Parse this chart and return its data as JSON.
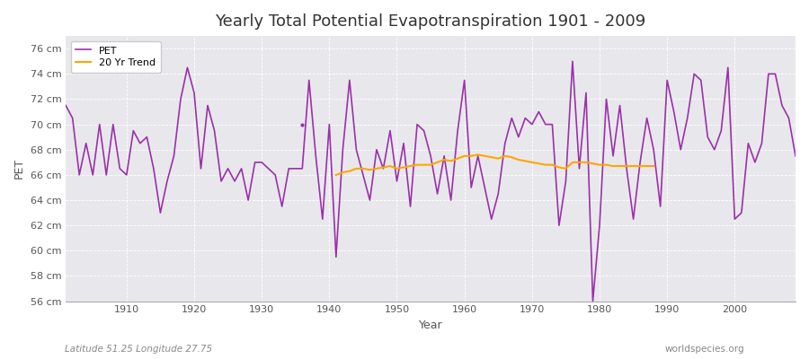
{
  "title": "Yearly Total Potential Evapotranspiration 1901 - 2009",
  "xlabel": "Year",
  "ylabel": "PET",
  "subtitle_left": "Latitude 51.25 Longitude 27.75",
  "subtitle_right": "worldspecies.org",
  "ylim": [
    56,
    77
  ],
  "ytick_labels": [
    "56 cm",
    "58 cm",
    "60 cm",
    "62 cm",
    "64 cm",
    "66 cm",
    "68 cm",
    "70 cm",
    "72 cm",
    "74 cm",
    "76 cm"
  ],
  "ytick_values": [
    56,
    58,
    60,
    62,
    64,
    66,
    68,
    70,
    72,
    74,
    76
  ],
  "pet_color": "#9B30AA",
  "trend_color": "#FFA500",
  "bg_color": "#FFFFFF",
  "plot_bg_color": "#E8E8EC",
  "grid_color": "#FFFFFF",
  "years": [
    1901,
    1902,
    1903,
    1904,
    1905,
    1906,
    1907,
    1908,
    1909,
    1910,
    1911,
    1912,
    1913,
    1914,
    1915,
    1916,
    1917,
    1918,
    1919,
    1920,
    1921,
    1922,
    1923,
    1924,
    1925,
    1926,
    1927,
    1928,
    1929,
    1930,
    1931,
    1932,
    1933,
    1934,
    1935,
    1936,
    1937,
    1938,
    1939,
    1940,
    1941,
    1942,
    1943,
    1944,
    1945,
    1946,
    1947,
    1948,
    1949,
    1950,
    1951,
    1952,
    1953,
    1954,
    1955,
    1956,
    1957,
    1958,
    1959,
    1960,
    1961,
    1962,
    1963,
    1964,
    1965,
    1966,
    1967,
    1968,
    1969,
    1970,
    1971,
    1972,
    1973,
    1974,
    1975,
    1976,
    1977,
    1978,
    1979,
    1980,
    1981,
    1982,
    1983,
    1984,
    1985,
    1986,
    1987,
    1988,
    1989,
    1990,
    1991,
    1992,
    1993,
    1994,
    1995,
    1996,
    1997,
    1998,
    1999,
    2000,
    2001,
    2002,
    2003,
    2004,
    2005,
    2006,
    2007,
    2008,
    2009
  ],
  "pet_values": [
    71.5,
    70.5,
    66.0,
    68.5,
    66.0,
    70.0,
    66.0,
    70.0,
    66.5,
    66.0,
    69.5,
    68.5,
    69.0,
    66.5,
    63.0,
    65.5,
    67.5,
    72.0,
    74.5,
    72.5,
    66.5,
    71.5,
    69.5,
    65.5,
    66.5,
    65.5,
    66.5,
    64.0,
    67.0,
    67.0,
    66.5,
    66.0,
    63.5,
    66.5,
    66.5,
    66.5,
    73.5,
    67.5,
    62.5,
    70.0,
    59.5,
    68.0,
    73.5,
    68.0,
    66.0,
    64.0,
    68.0,
    66.5,
    69.5,
    65.5,
    68.5,
    63.5,
    70.0,
    69.5,
    67.5,
    64.5,
    67.5,
    64.0,
    69.5,
    73.5,
    65.0,
    67.5,
    65.0,
    62.5,
    64.5,
    68.5,
    70.5,
    69.0,
    70.5,
    70.0,
    71.0,
    70.0,
    70.0,
    62.0,
    65.5,
    75.0,
    66.5,
    72.5,
    56.0,
    62.0,
    72.0,
    67.5,
    71.5,
    66.5,
    62.5,
    67.0,
    70.5,
    68.0,
    63.5,
    73.5,
    71.0,
    68.0,
    70.5,
    74.0,
    73.5,
    69.0,
    68.0,
    69.5,
    74.5,
    62.5,
    63.0,
    68.5,
    67.0,
    68.5,
    74.0,
    74.0,
    71.5,
    70.5,
    67.5
  ],
  "trend_years": [
    1941,
    1942,
    1943,
    1944,
    1945,
    1946,
    1947,
    1948,
    1949,
    1950,
    1951,
    1952,
    1953,
    1954,
    1955,
    1956,
    1957,
    1958,
    1959,
    1960,
    1961,
    1962,
    1963,
    1964,
    1965,
    1966,
    1967,
    1968,
    1969,
    1970,
    1971,
    1972,
    1973,
    1974,
    1975,
    1976,
    1977,
    1978,
    1979,
    1980,
    1981,
    1982,
    1983,
    1984,
    1985,
    1986,
    1987,
    1988
  ],
  "trend_values": [
    66.0,
    66.2,
    66.3,
    66.5,
    66.5,
    66.4,
    66.5,
    66.6,
    66.7,
    66.5,
    66.6,
    66.7,
    66.8,
    66.8,
    66.8,
    67.0,
    67.2,
    67.1,
    67.3,
    67.5,
    67.5,
    67.6,
    67.5,
    67.4,
    67.3,
    67.5,
    67.4,
    67.2,
    67.1,
    67.0,
    66.9,
    66.8,
    66.8,
    66.6,
    66.5,
    67.0,
    67.0,
    67.0,
    66.9,
    66.8,
    66.8,
    66.7,
    66.7,
    66.7,
    66.7,
    66.7,
    66.7,
    66.7
  ],
  "isolated_point_year": 1936,
  "isolated_point_value": 70.0
}
